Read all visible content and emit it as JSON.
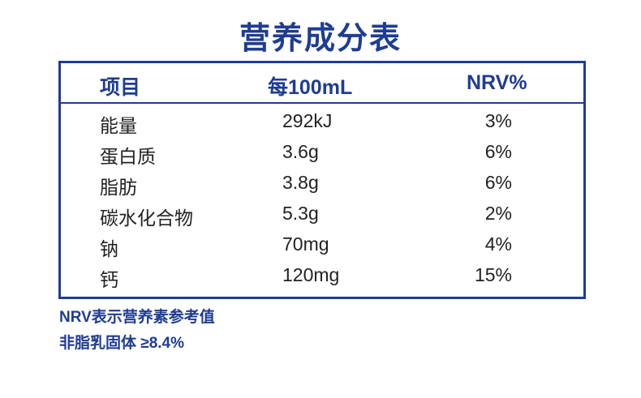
{
  "title": "营养成分表",
  "table": {
    "header": [
      "项目",
      "每100mL",
      "NRV%"
    ],
    "rows": [
      [
        "能量",
        "292kJ",
        "3%"
      ],
      [
        "蛋白质",
        "3.6g",
        "6%"
      ],
      [
        "脂肪",
        "3.8g",
        "6%"
      ],
      [
        "碳水化合物",
        "5.3g",
        "2%"
      ],
      [
        "钠",
        "70mg",
        "4%"
      ],
      [
        "钙",
        "120mg",
        "15%"
      ]
    ]
  },
  "notes": [
    "NRV表示营养素参考值",
    "非脂乳固体 ≥8.4%"
  ]
}
